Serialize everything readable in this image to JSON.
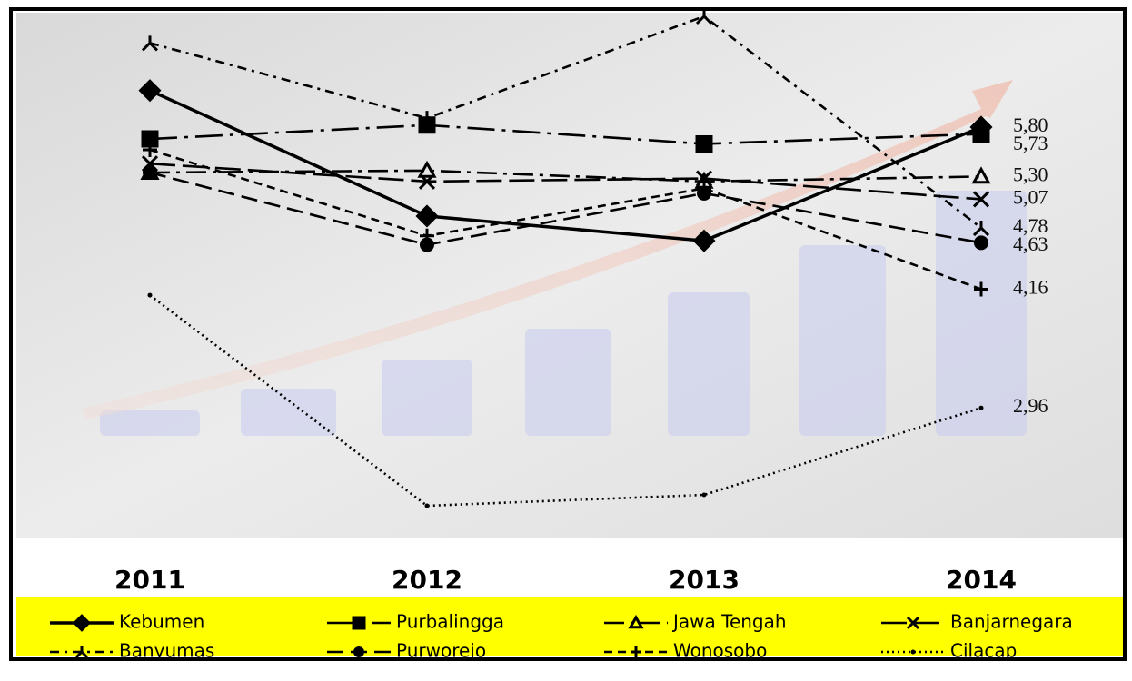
{
  "chart_data": {
    "type": "line",
    "categories": [
      "2011",
      "2012",
      "2013",
      "2014"
    ],
    "series": [
      {
        "name": "Kebumen",
        "color": "#000000",
        "marker": "diamond",
        "dash": "solid",
        "values": [
          6.17,
          4.9,
          4.65,
          5.8
        ],
        "value_labels": [
          null,
          null,
          null,
          "5,80"
        ]
      },
      {
        "name": "Purbalingga",
        "color": "#000000",
        "marker": "square",
        "dash": "dashdotlong",
        "values": [
          5.68,
          5.82,
          5.63,
          5.73
        ],
        "value_labels": [
          null,
          null,
          null,
          "5,73"
        ]
      },
      {
        "name": "Jawa Tengah",
        "color": "#000000",
        "marker": "triangle",
        "dash": "dashdot",
        "values": [
          5.34,
          5.36,
          5.25,
          5.3
        ],
        "value_labels": [
          null,
          null,
          null,
          "5,30"
        ]
      },
      {
        "name": "Banjarnegara",
        "color": "#000000",
        "marker": "x",
        "dash": "longdash",
        "values": [
          5.43,
          5.25,
          5.28,
          5.07
        ],
        "value_labels": [
          null,
          null,
          null,
          "5,07"
        ]
      },
      {
        "name": "Banyumas",
        "color": "#000000",
        "marker": "star",
        "dash": "dashdotshort",
        "values": [
          6.65,
          5.89,
          6.92,
          4.78
        ],
        "value_labels": [
          null,
          null,
          null,
          "4,78"
        ]
      },
      {
        "name": "Purworejo",
        "color": "#000000",
        "marker": "circle",
        "dash": "dash",
        "values": [
          5.34,
          4.61,
          5.13,
          4.63
        ],
        "value_labels": [
          null,
          null,
          null,
          "4,63"
        ]
      },
      {
        "name": "Wonosobo",
        "color": "#000000",
        "marker": "plus",
        "dash": "shortdash",
        "values": [
          5.57,
          4.7,
          5.18,
          4.16
        ],
        "value_labels": [
          null,
          null,
          null,
          "4,16"
        ]
      },
      {
        "name": "Cilacap",
        "color": "#000000",
        "marker": "dot",
        "dash": "dot",
        "values": [
          4.1,
          1.97,
          2.08,
          2.96
        ],
        "value_labels": [
          null,
          null,
          null,
          "2,96"
        ]
      }
    ],
    "legend": "bottom"
  }
}
